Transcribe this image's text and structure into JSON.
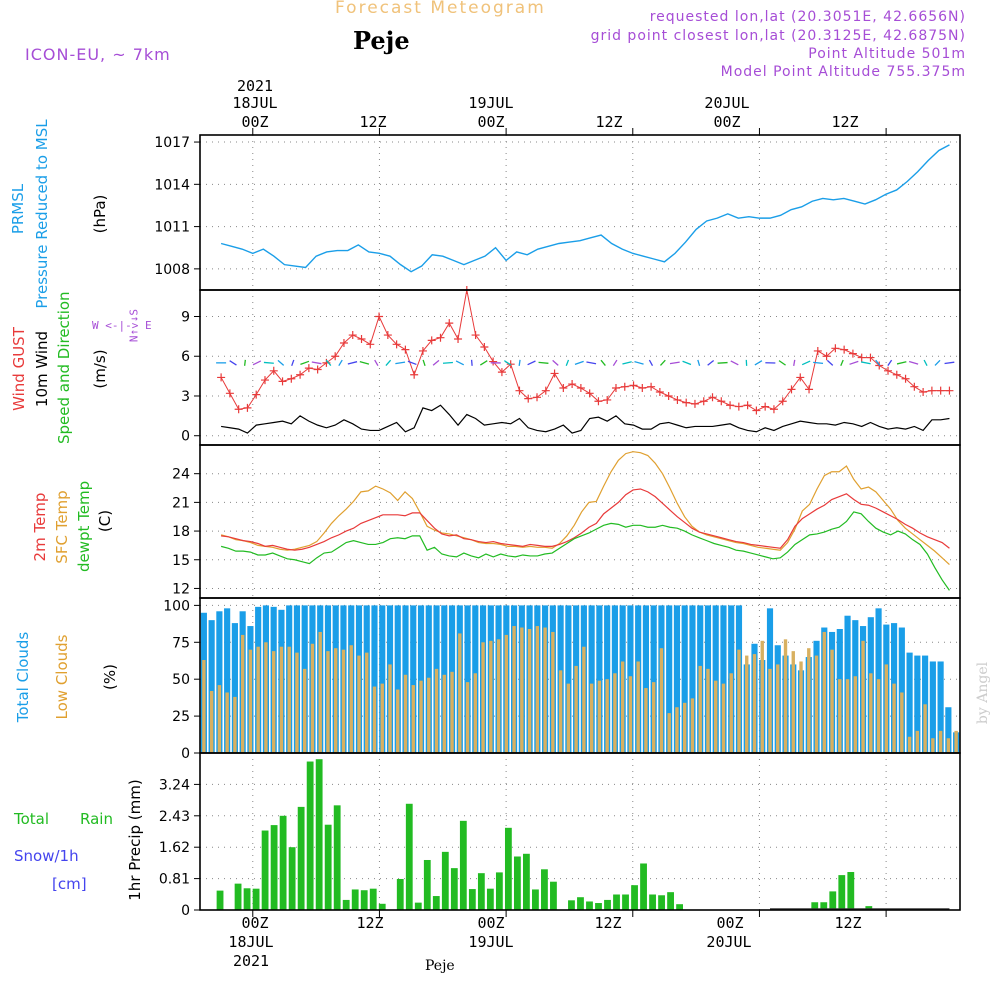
{
  "header": {
    "title": "Forecast Meteogram",
    "location": "Peje",
    "model": "ICON-EU, ~ 7km",
    "requested": "requested lon,lat (20.3051E, 42.6656N)",
    "gridpoint": "grid point closest lon,lat (20.3125E, 42.6875N)",
    "point_alt": "Point Altitude 501m",
    "model_alt": "Model Point Altitude 755.375m",
    "credit": "by Angel",
    "footer_location": "Peje"
  },
  "top_axis": {
    "year": "2021",
    "dates": [
      "18JUL",
      "19JUL",
      "20JUL"
    ],
    "ticks": [
      "00Z",
      "12Z",
      "00Z",
      "12Z",
      "00Z",
      "12Z"
    ]
  },
  "bottom_axis": {
    "year": "2021",
    "dates": [
      "18JUL",
      "19JUL",
      "20JUL"
    ],
    "ticks": [
      "00Z",
      "12Z",
      "00Z",
      "12Z",
      "00Z",
      "12Z"
    ]
  },
  "panel_labels": {
    "prmsl": "PRMSL",
    "prmsl_desc": "Pressure Reduced to MSL",
    "prmsl_unit": "(hPa)",
    "gust": "Wind GUST",
    "wind": "10m Wind",
    "wind_desc": "Speed and Direction",
    "wind_unit": "(m/s)",
    "compass_ns": "N↑ ↓S",
    "compass_we": "W <-|-> E",
    "t2m": "2m Temp",
    "sfc": "SFC Temp",
    "dew": "dewpt Temp",
    "temp_unit": "(C)",
    "total_clouds": "Total Clouds",
    "low_clouds": "Low Clouds",
    "cloud_unit": "(%)",
    "rain1": "Total",
    "rain2": "Rain",
    "snow": "Snow/1h",
    "snow_unit": "[cm]",
    "precip_axis": "1hr Precip (mm)"
  },
  "colors": {
    "pressure": "#1a9ee8",
    "gust": "#e83a3a",
    "wind": "#000000",
    "t2m": "#e83a3a",
    "sfc": "#e0a030",
    "dew": "#22bb22",
    "total_clouds": "#1a9ee8",
    "low_clouds": "#d8b060",
    "rain": "#22bb22",
    "snow": "#4444ee",
    "purple": "#a64dd6"
  },
  "chart_data": [
    {
      "id": "pressure",
      "type": "line",
      "title": "PRMSL Pressure Reduced to MSL",
      "ylabel": "(hPa)",
      "ylim": [
        1006.5,
        1017.5
      ],
      "yticks": [
        1008,
        1011,
        1014,
        1017
      ],
      "x_start_hour": -3,
      "x_end_hour": 67,
      "series": [
        {
          "name": "PRMSL",
          "x": [
            -3,
            -2,
            -1,
            0,
            1,
            2,
            3,
            4,
            5,
            6,
            7,
            8,
            9,
            10,
            11,
            12,
            13,
            14,
            15,
            16,
            17,
            18,
            19,
            20,
            21,
            22,
            23,
            24,
            25,
            26,
            27,
            28,
            29,
            30,
            31,
            32,
            33,
            34,
            35,
            36,
            37,
            38,
            39,
            40,
            41,
            42,
            43,
            44,
            45,
            46,
            47,
            48,
            49,
            50,
            51,
            52,
            53,
            54,
            55,
            56,
            57,
            58,
            59,
            60,
            61,
            62,
            63,
            64,
            65,
            66
          ],
          "values": [
            1009.8,
            1009.6,
            1009.4,
            1009.1,
            1009.4,
            1008.9,
            1008.3,
            1008.2,
            1008.1,
            1008.9,
            1009.2,
            1009.3,
            1009.3,
            1009.7,
            1009.2,
            1009.1,
            1008.9,
            1008.3,
            1007.8,
            1008.2,
            1009.0,
            1008.9,
            1008.6,
            1008.3,
            1008.6,
            1008.9,
            1009.5,
            1008.6,
            1009.2,
            1009.0,
            1009.4,
            1009.6,
            1009.8,
            1009.9,
            1010.0,
            1010.2,
            1010.4,
            1009.8,
            1009.4,
            1009.1,
            1008.9,
            1008.7,
            1008.5,
            1009.1,
            1009.9,
            1010.8,
            1011.4,
            1011.6,
            1011.9,
            1011.6,
            1011.7,
            1011.6,
            1011.6,
            1011.8,
            1012.2,
            1012.4,
            1012.8,
            1013.0,
            1012.9,
            1013.0,
            1012.8,
            1012.6,
            1012.9,
            1013.3,
            1013.6,
            1014.2,
            1014.9,
            1015.7,
            1016.4,
            1016.8
          ]
        }
      ]
    },
    {
      "id": "wind",
      "type": "line",
      "title": "Wind GUST / 10m Wind Speed and Direction",
      "ylabel": "(m/s)",
      "ylim": [
        -0.7,
        11
      ],
      "yticks": [
        0,
        3,
        6,
        9
      ],
      "series": [
        {
          "name": "Wind GUST",
          "values": [
            4.4,
            3.2,
            2.0,
            2.1,
            3.1,
            4.2,
            4.9,
            4.1,
            4.3,
            4.6,
            5.1,
            5.0,
            5.5,
            6.0,
            7.0,
            7.6,
            7.3,
            6.9,
            9.0,
            7.6,
            6.9,
            6.5,
            4.6,
            6.4,
            7.2,
            7.4,
            8.5,
            7.3,
            11.0,
            7.6,
            6.7,
            5.6,
            4.8,
            5.4,
            3.4,
            2.8,
            2.9,
            3.4,
            4.7,
            3.6,
            3.9,
            3.6,
            3.2,
            2.6,
            2.7,
            3.6,
            3.7,
            3.8,
            3.6,
            3.7,
            3.3,
            3.0,
            2.7,
            2.5,
            2.4,
            2.6,
            2.9,
            2.6,
            2.3,
            2.2,
            2.3,
            1.9,
            2.2,
            2.0,
            2.6,
            3.5,
            4.4,
            3.5,
            6.4,
            6.0,
            6.6,
            6.5,
            6.2,
            5.9,
            5.9,
            5.3,
            4.9,
            4.6,
            4.3,
            3.7,
            3.3,
            3.4,
            3.4,
            3.4
          ]
        },
        {
          "name": "10m Wind",
          "values": [
            0.7,
            0.6,
            0.5,
            0.2,
            0.8,
            0.9,
            1.0,
            1.1,
            0.9,
            1.5,
            1.1,
            0.8,
            0.6,
            0.8,
            1.2,
            0.9,
            0.5,
            0.4,
            0.4,
            0.7,
            1.0,
            0.3,
            0.6,
            2.1,
            1.9,
            2.3,
            1.6,
            0.8,
            1.6,
            1.3,
            0.8,
            0.9,
            1.0,
            0.9,
            1.3,
            0.6,
            0.4,
            0.3,
            0.5,
            0.8,
            0.2,
            0.4,
            1.3,
            1.4,
            1.1,
            1.5,
            0.9,
            0.8,
            0.5,
            0.5,
            0.9,
            1.0,
            0.8,
            0.6,
            0.7,
            0.7,
            0.7,
            0.8,
            0.9,
            0.6,
            0.4,
            0.3,
            0.6,
            0.4,
            0.7,
            0.9,
            1.1,
            1.0,
            0.9,
            0.9,
            0.8,
            1.0,
            0.9,
            0.7,
            1.0,
            0.7,
            0.5,
            0.6,
            0.5,
            0.7,
            0.4,
            1.2,
            1.2,
            1.3
          ]
        }
      ]
    },
    {
      "id": "temperature",
      "type": "line",
      "title": "2m Temp / SFC Temp / dewpt Temp",
      "ylabel": "(C)",
      "ylim": [
        11,
        27
      ],
      "yticks": [
        12,
        15,
        18,
        21,
        24
      ],
      "series": [
        {
          "name": "2m Temp",
          "values": [
            17.5,
            17.4,
            17.2,
            17.0,
            16.9,
            16.7,
            16.4,
            16.5,
            16.3,
            16.1,
            16.0,
            16.1,
            16.3,
            16.6,
            16.9,
            17.3,
            17.6,
            18.0,
            18.3,
            18.8,
            19.1,
            19.4,
            19.7,
            19.7,
            19.7,
            19.6,
            19.9,
            19.9,
            19.1,
            18.3,
            17.7,
            17.5,
            17.6,
            17.2,
            17.1,
            16.9,
            16.8,
            16.9,
            16.7,
            16.6,
            16.5,
            16.4,
            16.6,
            16.5,
            16.4,
            16.4,
            16.6,
            16.9,
            17.3,
            17.8,
            18.4,
            18.8,
            19.8,
            20.4,
            21.0,
            21.8,
            22.3,
            22.4,
            22.1,
            21.6,
            20.9,
            20.2,
            19.5,
            18.9,
            18.3,
            17.9,
            17.7,
            17.5,
            17.3,
            17.1,
            16.9,
            16.8,
            16.6,
            16.5,
            16.4,
            16.3,
            16.2,
            17.1,
            18.5,
            19.3,
            19.8,
            20.3,
            20.7,
            21.3,
            21.6,
            21.9,
            21.3,
            20.8,
            20.7,
            20.4,
            20.0,
            19.6,
            19.2,
            18.7,
            18.3,
            17.8,
            17.4,
            17.1,
            16.8,
            16.2
          ]
        },
        {
          "name": "SFC Temp",
          "values": [
            17.6,
            17.4,
            17.1,
            17.0,
            16.8,
            16.5,
            16.4,
            16.3,
            16.1,
            16.0,
            16.1,
            16.3,
            16.5,
            16.9,
            17.8,
            18.8,
            19.6,
            20.3,
            21.1,
            22.1,
            22.2,
            22.7,
            22.4,
            22.0,
            21.2,
            22.1,
            21.4,
            20.0,
            18.5,
            18.1,
            17.8,
            17.7,
            17.5,
            17.3,
            17.1,
            16.8,
            16.7,
            16.7,
            16.6,
            16.4,
            16.4,
            16.3,
            16.4,
            16.3,
            16.3,
            16.2,
            16.7,
            17.5,
            18.6,
            20.0,
            21.0,
            21.1,
            22.7,
            24.2,
            25.4,
            26.1,
            26.3,
            26.2,
            25.9,
            25.1,
            24.0,
            22.5,
            20.9,
            19.5,
            18.5,
            17.9,
            17.6,
            17.4,
            17.2,
            17.0,
            16.8,
            16.7,
            16.5,
            16.3,
            16.2,
            16.1,
            16.0,
            16.8,
            18.2,
            20.1,
            20.8,
            22.4,
            23.8,
            24.2,
            24.2,
            24.8,
            23.4,
            22.4,
            22.6,
            22.1,
            21.2,
            20.3,
            19.1,
            18.3,
            17.7,
            17.1,
            16.5,
            15.9,
            15.2,
            14.5
          ]
        },
        {
          "name": "dewpt Temp",
          "values": [
            16.4,
            16.2,
            15.9,
            15.9,
            15.8,
            15.5,
            15.5,
            15.7,
            15.4,
            15.1,
            15.0,
            14.8,
            14.6,
            15.2,
            15.7,
            15.8,
            16.3,
            16.8,
            17.0,
            16.8,
            16.6,
            16.6,
            16.8,
            17.2,
            17.3,
            17.2,
            17.5,
            17.5,
            16.0,
            16.3,
            15.6,
            15.4,
            15.3,
            15.7,
            15.4,
            15.2,
            15.6,
            15.3,
            15.6,
            15.4,
            15.3,
            15.5,
            15.4,
            15.4,
            15.6,
            15.7,
            16.2,
            16.7,
            17.2,
            17.5,
            17.8,
            18.2,
            18.6,
            18.8,
            18.7,
            18.4,
            18.6,
            18.6,
            18.4,
            18.4,
            18.6,
            18.4,
            18.3,
            18.0,
            17.6,
            17.3,
            17.0,
            16.7,
            16.5,
            16.3,
            16.0,
            15.9,
            15.7,
            15.5,
            15.3,
            15.1,
            15.2,
            15.8,
            16.6,
            17.1,
            17.6,
            17.7,
            17.9,
            18.2,
            18.4,
            19.0,
            20.0,
            19.8,
            19.0,
            18.3,
            17.9,
            17.6,
            18.0,
            17.7,
            17.1,
            16.6,
            15.6,
            14.2,
            12.9,
            11.8
          ]
        }
      ]
    },
    {
      "id": "clouds",
      "type": "bar",
      "title": "Total Clouds / Low Clouds",
      "ylabel": "(%)",
      "ylim": [
        0,
        105
      ],
      "yticks": [
        0,
        25,
        50,
        75,
        100
      ],
      "series": [
        {
          "name": "Total Clouds",
          "values": [
            95,
            90,
            96,
            98,
            88,
            96,
            86,
            99,
            100,
            99,
            97,
            100,
            100,
            100,
            100,
            100,
            100,
            100,
            100,
            100,
            100,
            100,
            100,
            100,
            100,
            100,
            100,
            100,
            100,
            100,
            100,
            100,
            100,
            100,
            100,
            100,
            100,
            100,
            100,
            100,
            100,
            100,
            100,
            100,
            100,
            100,
            100,
            100,
            100,
            100,
            100,
            100,
            100,
            100,
            100,
            100,
            100,
            100,
            100,
            100,
            100,
            100,
            100,
            100,
            100,
            100,
            100,
            100,
            100,
            100,
            60,
            74,
            63,
            98,
            73,
            66,
            60,
            56,
            65,
            76,
            85,
            82,
            84,
            93,
            90,
            86,
            92,
            98,
            87,
            88,
            85,
            68,
            66,
            66,
            62,
            62,
            31,
            14
          ]
        },
        {
          "name": "Low Clouds",
          "values": [
            63,
            42,
            46,
            41,
            38,
            80,
            70,
            72,
            75,
            69,
            72,
            72,
            68,
            57,
            74,
            82,
            69,
            71,
            70,
            73,
            66,
            68,
            45,
            47,
            60,
            43,
            53,
            46,
            49,
            51,
            57,
            53,
            55,
            81,
            48,
            54,
            75,
            76,
            77,
            80,
            86,
            85,
            84,
            86,
            85,
            82,
            56,
            47,
            59,
            72,
            47,
            49,
            50,
            54,
            62,
            52,
            62,
            44,
            48,
            71,
            27,
            31,
            34,
            37,
            59,
            57,
            49,
            47,
            54,
            70,
            66,
            67,
            76,
            57,
            60,
            77,
            69,
            62,
            71,
            66,
            82,
            70,
            50,
            50,
            52,
            76,
            54,
            50,
            60,
            47,
            41,
            11,
            15,
            33,
            10,
            15,
            10,
            15
          ]
        }
      ]
    },
    {
      "id": "precip",
      "type": "bar",
      "title": "1hr Precip",
      "ylabel": "1hr Precip (mm)",
      "ylim": [
        0,
        4.05
      ],
      "yticks": [
        0,
        0.81,
        1.62,
        2.43,
        3.24
      ],
      "ytick_labels": [
        "0",
        "0.81",
        "1.62",
        "2.43",
        "3.24"
      ],
      "series": [
        {
          "name": "Total Rain",
          "values": [
            0.5,
            0,
            0.68,
            0.56,
            0.55,
            2.05,
            2.19,
            2.43,
            1.62,
            2.66,
            3.83,
            3.89,
            2.2,
            2.7,
            0.26,
            0.53,
            0.51,
            0.55,
            0.16,
            0,
            0.8,
            2.74,
            0.19,
            1.29,
            0.36,
            1.5,
            1.08,
            2.3,
            0.54,
            0.95,
            0.55,
            0.97,
            2.12,
            1.38,
            1.45,
            0.53,
            1.05,
            0.73,
            0,
            0.25,
            0.33,
            0.22,
            0.18,
            0.26,
            0.4,
            0.4,
            0.64,
            1.2,
            0.4,
            0.38,
            0.46,
            0.15,
            0,
            0,
            0,
            0,
            0,
            0,
            0,
            0,
            0,
            0,
            0,
            0,
            0,
            0,
            0.2,
            0.2,
            0.48,
            0.9,
            0.98,
            0,
            0.1,
            0,
            0,
            0,
            0,
            0,
            0,
            0,
            0,
            0
          ]
        },
        {
          "name": "Snow/1h",
          "values": []
        }
      ]
    }
  ]
}
